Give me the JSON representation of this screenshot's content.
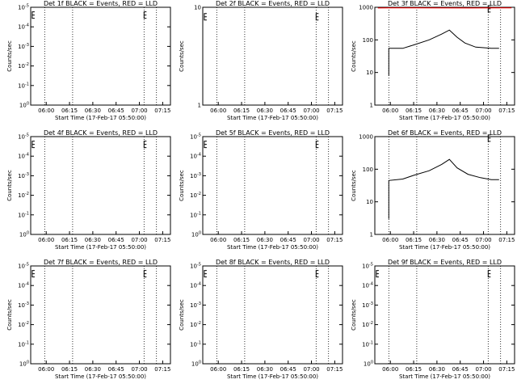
{
  "chart_data": [
    {
      "type": "line",
      "title": "Det 1f BLACK = Events, RED = LLD",
      "xlabel": "Start Time (17-Feb-17 05:50:00)",
      "ylabel": "Counts/sec",
      "x_ticks": [
        "06:00",
        "06:15",
        "06:30",
        "06:45",
        "07:00",
        "07:15"
      ],
      "y_scale": "log",
      "y_ticks": [
        "10^0",
        "10^-1",
        "10^-2",
        "10^-3",
        "10^-4",
        "10^-5"
      ],
      "ylim": [
        1e-05,
        1.0
      ],
      "markers": [
        {
          "x": "05:51",
          "y": 0.4
        },
        {
          "x": "07:03",
          "y": 0.4
        }
      ],
      "series": []
    },
    {
      "type": "line",
      "title": "Det 2f BLACK = Events, RED = LLD",
      "xlabel": "Start Time (17-Feb-17 05:50:00)",
      "ylabel": "Counts/sec",
      "x_ticks": [
        "06:00",
        "06:15",
        "06:30",
        "06:45",
        "07:00",
        "07:15"
      ],
      "y_scale": "log",
      "y_ticks": [
        "1",
        "10"
      ],
      "ylim": [
        1,
        10
      ],
      "markers": [
        {
          "x": "05:51",
          "y": 8.0
        },
        {
          "x": "07:03",
          "y": 8.0
        }
      ],
      "series": []
    },
    {
      "type": "line",
      "title": "Det 3f BLACK = Events, RED = LLD",
      "xlabel": "Start Time (17-Feb-17 05:50:00)",
      "ylabel": "Counts/sec",
      "x_ticks": [
        "06:00",
        "06:15",
        "06:30",
        "06:45",
        "07:00",
        "07:15"
      ],
      "y_scale": "log",
      "y_ticks": [
        "1",
        "10",
        "100",
        "1000"
      ],
      "ylim": [
        1,
        1000
      ],
      "markers": [
        {
          "x": "07:03",
          "y": 900
        }
      ],
      "series": [
        {
          "color": "#000000",
          "points": [
            [
              "05:59",
              8
            ],
            [
              "05:59",
              55
            ],
            [
              "06:08",
              55
            ],
            [
              "06:15",
              70
            ],
            [
              "06:25",
              100
            ],
            [
              "06:33",
              150
            ],
            [
              "06:38",
              200
            ],
            [
              "06:43",
              120
            ],
            [
              "06:48",
              80
            ],
            [
              "06:55",
              60
            ],
            [
              "07:05",
              55
            ],
            [
              "07:10",
              55
            ]
          ]
        },
        {
          "color": "#ff0000",
          "points": [
            [
              "05:52",
              950
            ],
            [
              "05:59",
              960
            ],
            [
              "06:17",
              960
            ],
            [
              "06:50",
              950
            ],
            [
              "07:13",
              960
            ],
            [
              "07:18",
              960
            ]
          ]
        }
      ]
    },
    {
      "type": "line",
      "title": "Det 4f BLACK = Events, RED = LLD",
      "xlabel": "Start Time (17-Feb-17 05:50:00)",
      "ylabel": "Counts/sec",
      "x_ticks": [
        "06:00",
        "06:15",
        "06:30",
        "06:45",
        "07:00",
        "07:15"
      ],
      "y_scale": "log",
      "y_ticks": [
        "10^0",
        "10^-1",
        "10^-2",
        "10^-3",
        "10^-4",
        "10^-5"
      ],
      "ylim": [
        1e-05,
        1.0
      ],
      "markers": [
        {
          "x": "05:51",
          "y": 0.4
        },
        {
          "x": "07:03",
          "y": 0.4
        }
      ],
      "series": []
    },
    {
      "type": "line",
      "title": "Det 5f BLACK = Events, RED = LLD",
      "xlabel": "Start Time (17-Feb-17 05:50:00)",
      "ylabel": "Counts/sec",
      "x_ticks": [
        "06:00",
        "06:15",
        "06:30",
        "06:45",
        "07:00",
        "07:15"
      ],
      "y_scale": "log",
      "y_ticks": [
        "10^0",
        "10^-1",
        "10^-2",
        "10^-3",
        "10^-4",
        "10^-5"
      ],
      "ylim": [
        1e-05,
        1.0
      ],
      "markers": [
        {
          "x": "05:51",
          "y": 0.4
        },
        {
          "x": "07:03",
          "y": 0.4
        }
      ],
      "series": []
    },
    {
      "type": "line",
      "title": "Det 6f BLACK = Events, RED = LLD",
      "xlabel": "Start Time (17-Feb-17 05:50:00)",
      "ylabel": "Counts/sec",
      "x_ticks": [
        "06:00",
        "06:15",
        "06:30",
        "06:45",
        "07:00",
        "07:15"
      ],
      "y_scale": "log",
      "y_ticks": [
        "1",
        "10",
        "100",
        "1000"
      ],
      "ylim": [
        1,
        1000
      ],
      "markers": [
        {
          "x": "07:03",
          "y": 900
        }
      ],
      "series": [
        {
          "color": "#000000",
          "points": [
            [
              "05:59",
              3
            ],
            [
              "05:59",
              45
            ],
            [
              "06:08",
              50
            ],
            [
              "06:15",
              65
            ],
            [
              "06:25",
              90
            ],
            [
              "06:33",
              140
            ],
            [
              "06:38",
              200
            ],
            [
              "06:43",
              110
            ],
            [
              "06:50",
              70
            ],
            [
              "06:58",
              55
            ],
            [
              "07:05",
              48
            ],
            [
              "07:10",
              48
            ]
          ]
        }
      ]
    },
    {
      "type": "line",
      "title": "Det 7f BLACK = Events, RED = LLD",
      "xlabel": "Start Time (17-Feb-17 05:50:00)",
      "ylabel": "Counts/sec",
      "x_ticks": [
        "06:00",
        "06:15",
        "06:30",
        "06:45",
        "07:00",
        "07:15"
      ],
      "y_scale": "log",
      "y_ticks": [
        "10^0",
        "10^-1",
        "10^-2",
        "10^-3",
        "10^-4",
        "10^-5"
      ],
      "ylim": [
        1e-05,
        1.0
      ],
      "markers": [
        {
          "x": "05:51",
          "y": 0.4
        },
        {
          "x": "07:03",
          "y": 0.4
        }
      ],
      "series": []
    },
    {
      "type": "line",
      "title": "Det 8f BLACK = Events, RED = LLD",
      "xlabel": "Start Time (17-Feb-17 05:50:00)",
      "ylabel": "Counts/sec",
      "x_ticks": [
        "06:00",
        "06:15",
        "06:30",
        "06:45",
        "07:00",
        "07:15"
      ],
      "y_scale": "log",
      "y_ticks": [
        "10^0",
        "10^-1",
        "10^-2",
        "10^-3",
        "10^-4",
        "10^-5"
      ],
      "ylim": [
        1e-05,
        1.0
      ],
      "markers": [
        {
          "x": "05:51",
          "y": 0.4
        },
        {
          "x": "07:03",
          "y": 0.4
        }
      ],
      "series": []
    },
    {
      "type": "line",
      "title": "Det 9f BLACK = Events, RED = LLD",
      "xlabel": "Start Time (17-Feb-17 05:50:00)",
      "ylabel": "Counts/sec",
      "x_ticks": [
        "06:00",
        "06:15",
        "06:30",
        "06:45",
        "07:00",
        "07:15"
      ],
      "y_scale": "log",
      "y_ticks": [
        "10^0",
        "10^-1",
        "10^-2",
        "10^-3",
        "10^-4",
        "10^-5"
      ],
      "ylim": [
        1e-05,
        1.0
      ],
      "markers": [
        {
          "x": "05:51",
          "y": 0.4
        },
        {
          "x": "07:03",
          "y": 0.4
        }
      ],
      "series": []
    }
  ],
  "x_range": [
    "05:50",
    "07:20"
  ],
  "vlines": [
    "05:59",
    "06:17",
    "07:03",
    "07:11"
  ]
}
